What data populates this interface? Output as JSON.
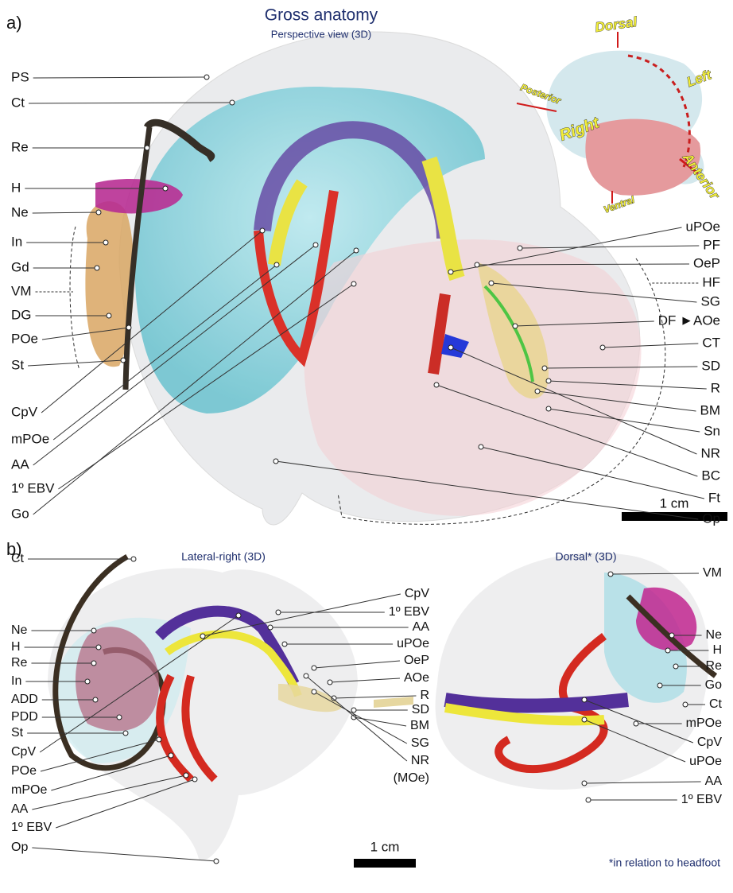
{
  "panel_a": {
    "label": "a)",
    "title": "Gross anatomy",
    "subtitle": "Perspective view (3D)",
    "left_labels": [
      "PS",
      "Ct",
      "Re",
      "H",
      "Ne",
      "In",
      "Gd",
      "VM",
      "DG",
      "POe",
      "St",
      "CpV",
      "mPOe",
      "AA",
      "1º EBV",
      "Go"
    ],
    "right_labels": [
      "uPOe",
      "PF",
      "OeP",
      "HF",
      "SG",
      "DF ►AOe",
      "CT",
      "SD",
      "R",
      "BM",
      "Sn",
      "NR",
      "BC",
      "Ft",
      "Op"
    ],
    "orientation": {
      "dorsal": "Dorsal",
      "posterior": "Posterior",
      "left": "Left",
      "right": "Right",
      "anterior": "Anterior",
      "ventral": "Ventral"
    },
    "scale_bar": "1 cm"
  },
  "panel_b": {
    "label": "b)",
    "lateral_view": {
      "title": "Lateral-right (3D)",
      "left_labels": [
        "Ct",
        "Ne",
        "H",
        "Re",
        "In",
        "ADD",
        "PDD",
        "St",
        "CpV",
        "POe",
        "mPOe",
        "AA",
        "1º EBV",
        "Op"
      ],
      "right_labels": [
        "CpV",
        "1º EBV",
        "AA",
        "uPOe",
        "OeP",
        "AOe",
        "R",
        "SD",
        "BM",
        "SG",
        "NR",
        "(MOe)"
      ]
    },
    "dorsal_view": {
      "title": "Dorsal* (3D)",
      "right_labels": [
        "VM",
        "Ne",
        "H",
        "Re",
        "Go",
        "Ct",
        "mPOe",
        "CpV",
        "uPOe",
        "AA",
        "1º EBV"
      ]
    },
    "scale_bar": "1 cm",
    "footnote": "*in relation to headfoot"
  }
}
